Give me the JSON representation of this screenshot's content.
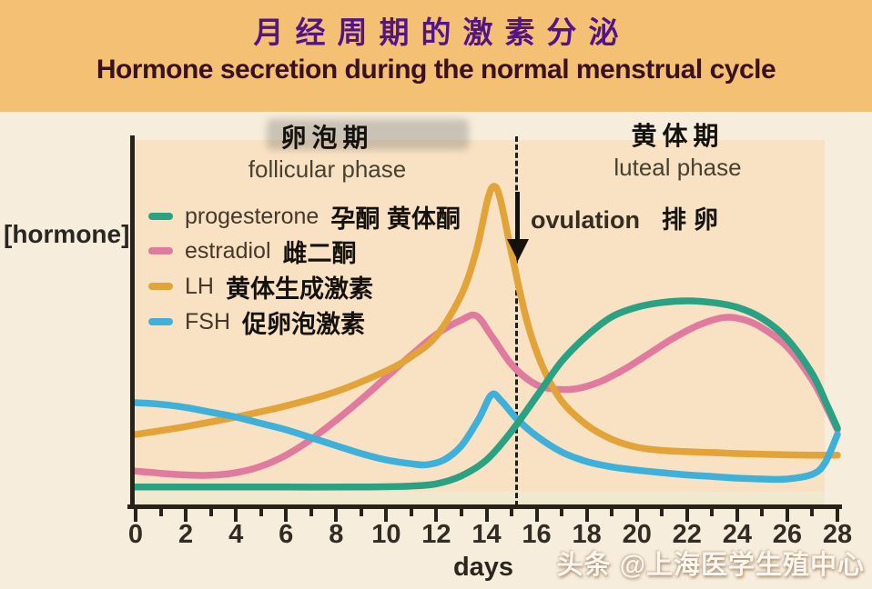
{
  "header": {
    "title_cn": "月经周期的激素分泌",
    "title_en": "Hormone secretion during the normal menstrual cycle"
  },
  "phases": {
    "follicular_cn": "卵泡期",
    "follicular_en": "follicular phase",
    "luteal_cn": "黄体期",
    "luteal_en": "luteal phase"
  },
  "axis": {
    "ylabel": "[hormone]",
    "xlabel": "days"
  },
  "ovulation": {
    "label_en": "ovulation",
    "label_cn": "排卵"
  },
  "legend": [
    {
      "name_en": "progesterone",
      "name_cn": "孕酮 黄体酮",
      "series_key": "progesterone"
    },
    {
      "name_en": "estradiol",
      "name_cn": "雌二酮",
      "series_key": "estradiol"
    },
    {
      "name_en": "LH",
      "name_cn": "黄体生成激素",
      "series_key": "lh"
    },
    {
      "name_en": "FSH",
      "name_cn": "促卵泡激素",
      "series_key": "fsh"
    }
  ],
  "watermark": {
    "text": "头条 @上海医学生殖中心"
  },
  "colors": {
    "header_band": "#f4c073",
    "figure_bg": "#f7eddd",
    "plot_bg": "#f9e2c4",
    "title_cn": "#521486",
    "title_en": "#3a1120",
    "axis": "#28221b"
  },
  "chart_data": {
    "type": "line",
    "title": "Hormone secretion during the normal menstrual cycle (月经周期的激素分泌)",
    "xlabel": "days",
    "ylabel": "[hormone]",
    "xlim": [
      0,
      28
    ],
    "ylim": [
      0,
      100
    ],
    "y_units": "relative hormone concentration (axis unlabeled; 0-100 estimated)",
    "x_tick_labels": [
      0,
      2,
      4,
      6,
      8,
      10,
      12,
      14,
      16,
      18,
      20,
      22,
      24,
      26,
      28
    ],
    "x_minor_step": 1,
    "grid": false,
    "legend_position": "upper-left",
    "ovulation_line_day": 15.2,
    "annotations": [
      "follicular phase: days 0-15",
      "luteal phase: days 15-28",
      "ovulation arrow at LH peak, day ~14-15"
    ],
    "series": [
      {
        "key": "estradiol",
        "name": "estradiol",
        "color": "#e07a9e",
        "points": [
          [
            0,
            10.5
          ],
          [
            1,
            9.8
          ],
          [
            2,
            9.3
          ],
          [
            3,
            9.2
          ],
          [
            4,
            10
          ],
          [
            5,
            12
          ],
          [
            6,
            15.5
          ],
          [
            7,
            20.5
          ],
          [
            8,
            26.5
          ],
          [
            9,
            33
          ],
          [
            10,
            40
          ],
          [
            11,
            47
          ],
          [
            12,
            53.5
          ],
          [
            13,
            58
          ],
          [
            13.6,
            59.3
          ],
          [
            14.2,
            53
          ],
          [
            15,
            44
          ],
          [
            15.8,
            38.5
          ],
          [
            16.5,
            36.5
          ],
          [
            17.5,
            36.3
          ],
          [
            18.5,
            38.5
          ],
          [
            19.5,
            42.5
          ],
          [
            20.5,
            47.5
          ],
          [
            21.5,
            52.5
          ],
          [
            22.5,
            56.5
          ],
          [
            23.5,
            58.8
          ],
          [
            24.3,
            58
          ],
          [
            25,
            55.5
          ],
          [
            26,
            49.5
          ],
          [
            27,
            39
          ],
          [
            27.6,
            30
          ],
          [
            28,
            23.5
          ]
        ]
      },
      {
        "key": "lh",
        "name": "LH",
        "color": "#e2a438",
        "points": [
          [
            0,
            22
          ],
          [
            2,
            24.5
          ],
          [
            4,
            27.5
          ],
          [
            6,
            31
          ],
          [
            8,
            35.5
          ],
          [
            10,
            42
          ],
          [
            11,
            46.5
          ],
          [
            12,
            53
          ],
          [
            13,
            66
          ],
          [
            13.6,
            80
          ],
          [
            14.05,
            96
          ],
          [
            14.3,
            100
          ],
          [
            14.55,
            96
          ],
          [
            15,
            79
          ],
          [
            15.6,
            58
          ],
          [
            16.2,
            44
          ],
          [
            17,
            32.5
          ],
          [
            18,
            25
          ],
          [
            19,
            20.5
          ],
          [
            20,
            18
          ],
          [
            21,
            17
          ],
          [
            22,
            16.6
          ],
          [
            23,
            16.3
          ],
          [
            24,
            16
          ],
          [
            25,
            15.8
          ],
          [
            26,
            15.6
          ],
          [
            27,
            15.5
          ],
          [
            28,
            15.5
          ]
        ]
      },
      {
        "key": "fsh",
        "name": "FSH",
        "color": "#3fb0da",
        "points": [
          [
            0,
            32
          ],
          [
            1,
            31.5
          ],
          [
            2,
            30.5
          ],
          [
            3,
            29
          ],
          [
            4,
            27.5
          ],
          [
            5,
            25.5
          ],
          [
            6,
            23.5
          ],
          [
            7,
            21
          ],
          [
            8,
            18.5
          ],
          [
            9,
            16
          ],
          [
            10,
            14
          ],
          [
            11,
            12.8
          ],
          [
            11.6,
            12.5
          ],
          [
            12.3,
            14
          ],
          [
            13,
            18.5
          ],
          [
            13.7,
            27
          ],
          [
            14.2,
            34.5
          ],
          [
            14.6,
            32.5
          ],
          [
            15.2,
            27
          ],
          [
            16,
            21.5
          ],
          [
            17,
            16.5
          ],
          [
            18,
            13.5
          ],
          [
            19,
            11.8
          ],
          [
            20,
            10.8
          ],
          [
            21,
            10
          ],
          [
            22,
            9.3
          ],
          [
            23,
            8.8
          ],
          [
            24,
            8.3
          ],
          [
            25,
            8
          ],
          [
            26,
            8
          ],
          [
            27,
            9.5
          ],
          [
            27.5,
            13
          ],
          [
            28,
            22
          ]
        ]
      },
      {
        "key": "progesterone",
        "name": "progesterone",
        "color": "#2aa183",
        "points": [
          [
            0,
            5.5
          ],
          [
            3,
            5.5
          ],
          [
            6,
            5.5
          ],
          [
            9,
            5.5
          ],
          [
            11,
            5.8
          ],
          [
            12,
            6.5
          ],
          [
            13,
            9
          ],
          [
            14,
            14
          ],
          [
            15,
            23
          ],
          [
            16,
            34
          ],
          [
            17,
            45
          ],
          [
            18,
            53
          ],
          [
            19,
            59
          ],
          [
            20,
            62
          ],
          [
            21,
            63.5
          ],
          [
            22,
            64
          ],
          [
            23,
            63.5
          ],
          [
            24,
            62
          ],
          [
            25,
            58.5
          ],
          [
            26,
            52
          ],
          [
            27,
            41
          ],
          [
            27.6,
            31
          ],
          [
            28,
            24
          ]
        ]
      }
    ]
  }
}
